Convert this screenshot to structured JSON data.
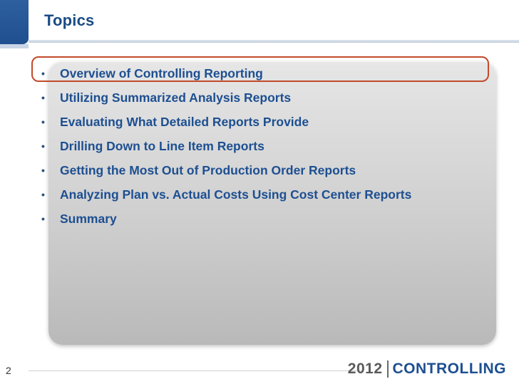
{
  "slide": {
    "title": "Topics",
    "page_number": "2"
  },
  "topics": [
    "Overview of Controlling Reporting",
    "Utilizing Summarized Analysis Reports",
    "Evaluating What Detailed Reports Provide",
    "Drilling Down to Line Item Reports",
    "Getting the Most Out of Production Order Reports",
    "Analyzing Plan vs. Actual Costs Using Cost Center Reports",
    "Summary"
  ],
  "bullet_char": "•",
  "highlighted_item": "Overview of Controlling Reporting",
  "logo": {
    "year": "2012",
    "brand": "CONTROLLING"
  },
  "colors": {
    "title": "#1a4b86",
    "topic_text": "#1d4f91",
    "highlight_border": "#c24a2b",
    "sidebar": "#2e5f9e"
  }
}
